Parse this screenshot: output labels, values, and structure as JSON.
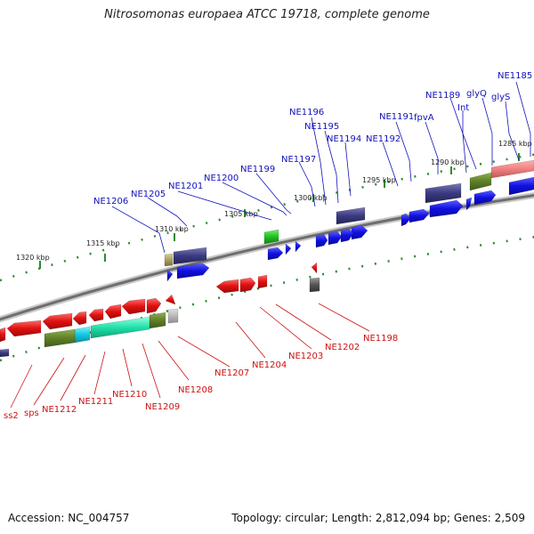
{
  "title": "Nitrosomonas europaea ATCC 19718, complete genome",
  "accession": "Accession: NC_004757",
  "topology": "Topology: circular; Length: 2,812,094 bp; Genes: 2,509",
  "colors": {
    "backbone": "#8a8a8a",
    "tick": "#2e8b2e",
    "forward_gene": "#1414e6",
    "reverse_gene": "#e61414",
    "top_label": "#1111bb",
    "bottom_label": "#cc1111"
  },
  "kbp_labels": [
    "1285 kbp",
    "1290 kbp",
    "1295 kbp",
    "1300 kbp",
    "1305 kbp",
    "1310 kbp",
    "1315 kbp",
    "1320 kbp"
  ],
  "top_genes": [
    "NE1185",
    "glyS",
    "glyQ",
    "NE1189",
    "Int",
    "fpvA",
    "NE1191",
    "NE1192",
    "NE1194",
    "NE1195",
    "NE1196",
    "NE1197",
    "NE1199",
    "NE1200",
    "NE1201",
    "NE1205",
    "NE1206"
  ],
  "bottom_genes": [
    "NE1198",
    "NE1202",
    "NE1203",
    "NE1204",
    "NE1207",
    "NE1208",
    "NE1209",
    "NE1210",
    "NE1211",
    "NE1212",
    "sps",
    "ss2"
  ]
}
